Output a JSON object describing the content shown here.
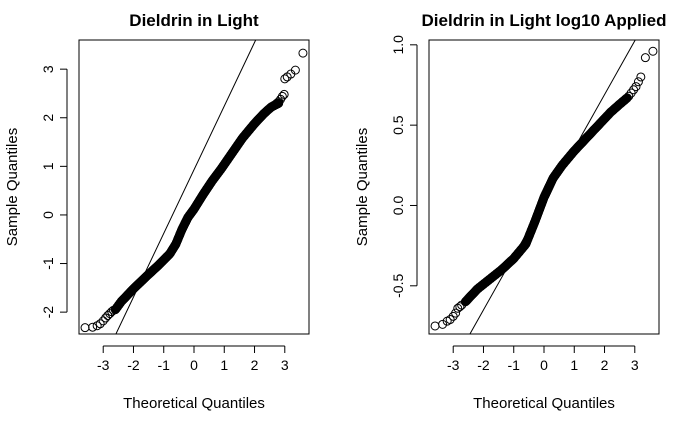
{
  "chart_data": [
    {
      "type": "scatter",
      "subtype": "qq-plot",
      "title": "Dieldrin in Light",
      "xlabel": "Theoretical Quantiles",
      "ylabel": "Sample Quantiles",
      "xlim": [
        -3.8,
        3.8
      ],
      "ylim": [
        -2.45,
        3.6
      ],
      "xticks": [
        -3,
        -2,
        -1,
        0,
        1,
        2,
        3
      ],
      "xtick_labels": [
        "-3",
        "-2",
        "-1",
        "0",
        "1",
        "2",
        "3"
      ],
      "yticks": [
        -2,
        -1,
        0,
        1,
        2,
        3
      ],
      "ytick_labels": [
        "-2",
        "-1",
        "0",
        "1",
        "2",
        "3"
      ],
      "grid": false,
      "reference_line": {
        "slope": 1.31,
        "intercept": 0.93
      },
      "curve_samples": {
        "x": [
          -2.6,
          -2.4,
          -2.0,
          -1.6,
          -1.2,
          -0.8,
          -0.6,
          -0.4,
          -0.2,
          0.0,
          0.3,
          0.6,
          0.9,
          1.2,
          1.6,
          2.0,
          2.3,
          2.55,
          2.8
        ],
        "y": [
          -1.95,
          -1.78,
          -1.52,
          -1.28,
          -1.05,
          -0.8,
          -0.6,
          -0.3,
          -0.05,
          0.12,
          0.42,
          0.7,
          0.95,
          1.22,
          1.58,
          1.88,
          2.08,
          2.22,
          2.3
        ]
      },
      "tail_points": {
        "x": [
          -3.6,
          -3.35,
          -3.2,
          -3.1,
          -3.0,
          -2.92,
          -2.85,
          -2.78,
          -2.72,
          -2.66,
          2.63,
          2.68,
          2.74,
          2.8,
          2.86,
          2.92,
          2.98,
          3.0,
          3.08,
          3.2,
          3.35,
          3.6
        ],
        "y": [
          -2.32,
          -2.31,
          -2.28,
          -2.24,
          -2.18,
          -2.12,
          -2.07,
          -2.03,
          -1.99,
          -1.96,
          2.25,
          2.27,
          2.3,
          2.33,
          2.38,
          2.44,
          2.48,
          2.8,
          2.84,
          2.9,
          2.98,
          3.33
        ]
      }
    },
    {
      "type": "scatter",
      "subtype": "qq-plot",
      "title": "Dieldrin in Light log10 Applied",
      "xlabel": "Theoretical Quantiles",
      "ylabel": "Sample Quantiles",
      "xlim": [
        -3.8,
        3.8
      ],
      "ylim": [
        -0.8,
        1.03
      ],
      "xticks": [
        -3,
        -2,
        -1,
        0,
        1,
        2,
        3
      ],
      "xtick_labels": [
        "-3",
        "-2",
        "-1",
        "0",
        "1",
        "2",
        "3"
      ],
      "yticks": [
        -0.5,
        0.0,
        0.5,
        1.0
      ],
      "ytick_labels": [
        "-0.5",
        "0.0",
        "0.5",
        "1.0"
      ],
      "grid": false,
      "reference_line": {
        "slope": 0.335,
        "intercept": 0.02
      },
      "curve_samples": {
        "x": [
          -2.6,
          -2.2,
          -1.8,
          -1.4,
          -1.0,
          -0.6,
          -0.3,
          0.0,
          0.3,
          0.6,
          1.0,
          1.4,
          1.8,
          2.2,
          2.5,
          2.75
        ],
        "y": [
          -0.6,
          -0.52,
          -0.46,
          -0.4,
          -0.33,
          -0.24,
          -0.1,
          0.05,
          0.17,
          0.25,
          0.34,
          0.42,
          0.5,
          0.58,
          0.63,
          0.67
        ]
      },
      "tail_points": {
        "x": [
          -3.6,
          -3.35,
          -3.2,
          -3.1,
          -3.0,
          -2.92,
          -2.85,
          -2.78,
          -2.72,
          2.8,
          2.88,
          2.96,
          3.04,
          3.12,
          3.2,
          3.35,
          3.6
        ],
        "y": [
          -0.75,
          -0.74,
          -0.72,
          -0.71,
          -0.69,
          -0.67,
          -0.64,
          -0.63,
          -0.62,
          0.68,
          0.7,
          0.72,
          0.74,
          0.77,
          0.8,
          0.92,
          0.96
        ]
      }
    }
  ]
}
